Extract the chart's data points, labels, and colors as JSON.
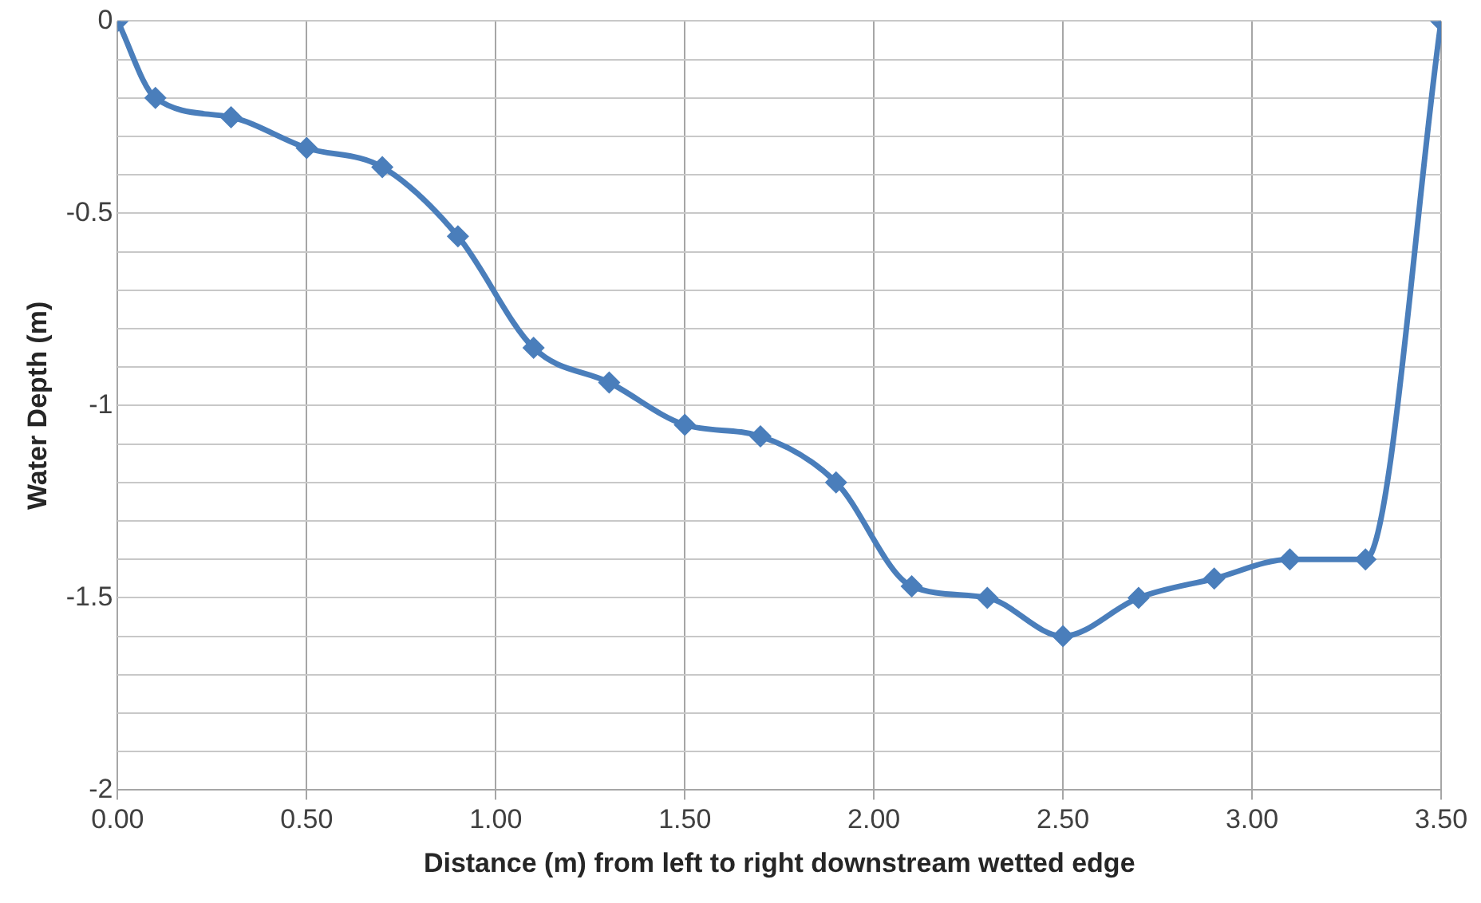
{
  "chart_data": {
    "type": "line",
    "xlabel": "Distance (m) from left to right downstream wetted edge",
    "ylabel": "Water Depth (m)",
    "x": [
      0,
      0.1,
      0.3,
      0.5,
      0.7,
      0.9,
      1.1,
      1.3,
      1.5,
      1.7,
      1.9,
      2.1,
      2.3,
      2.5,
      2.7,
      2.9,
      3.1,
      3.3,
      3.5
    ],
    "series": [
      {
        "color": "#4a7ebb",
        "values": [
          0,
          -0.2,
          -0.25,
          -0.33,
          -0.38,
          -0.56,
          -0.85,
          -0.94,
          -1.05,
          -1.08,
          -1.2,
          -1.47,
          -1.5,
          -1.6,
          -1.5,
          -1.45,
          -1.4,
          -1.4,
          0
        ]
      }
    ],
    "xlim": [
      0,
      3.5
    ],
    "xticks": [
      {
        "value": 0,
        "label": "0.00"
      },
      {
        "value": 0.5,
        "label": "0.50"
      },
      {
        "value": 1,
        "label": "1.00"
      },
      {
        "value": 1.5,
        "label": "1.50"
      },
      {
        "value": 2,
        "label": "2.00"
      },
      {
        "value": 2.5,
        "label": "2.50"
      },
      {
        "value": 3,
        "label": "3.00"
      },
      {
        "value": 3.5,
        "label": "3.50"
      }
    ],
    "ylim": [
      -2,
      0
    ],
    "yticks": [
      {
        "value": -2,
        "label": "-2"
      },
      {
        "value": -1.9,
        "label": null
      },
      {
        "value": -1.8,
        "label": null
      },
      {
        "value": -1.7,
        "label": null
      },
      {
        "value": -1.6,
        "label": null
      },
      {
        "value": -1.5,
        "label": "-1.5"
      },
      {
        "value": -1.4,
        "label": null
      },
      {
        "value": -1.3,
        "label": null
      },
      {
        "value": -1.2,
        "label": null
      },
      {
        "value": -1.1,
        "label": null
      },
      {
        "value": -1,
        "label": "-1"
      },
      {
        "value": -0.9,
        "label": null
      },
      {
        "value": -0.8,
        "label": null
      },
      {
        "value": -0.7,
        "label": null
      },
      {
        "value": -0.6,
        "label": null
      },
      {
        "value": -0.5,
        "label": "-0.5"
      },
      {
        "value": -0.4,
        "label": null
      },
      {
        "value": -0.3,
        "label": null
      },
      {
        "value": -0.2,
        "label": null
      },
      {
        "value": -0.1,
        "label": null
      },
      {
        "value": 0,
        "label": "0"
      }
    ],
    "grid": true,
    "legend": false,
    "marker": "diamond",
    "line_style": "solid"
  }
}
